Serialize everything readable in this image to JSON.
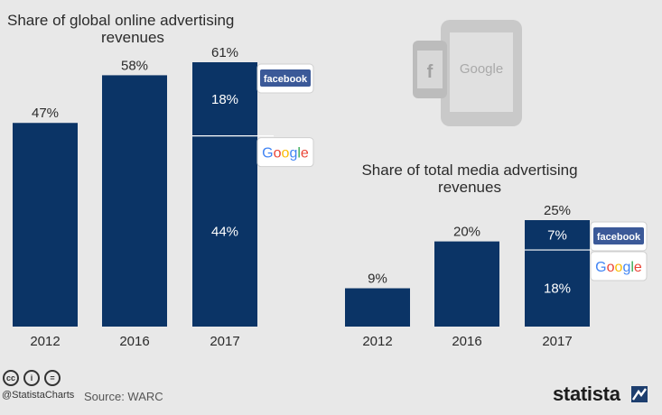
{
  "colors": {
    "bar": "#0b3466",
    "background": "#e8e8e8",
    "label": "#2b2b2b",
    "facebook": "#3b5998"
  },
  "chart_data": [
    {
      "type": "bar",
      "title": "Share of global online advertising revenues",
      "title_lines": [
        "Share of global online advertising",
        "revenues"
      ],
      "categories": [
        "2012",
        "2016",
        "2017"
      ],
      "values": [
        47,
        58,
        61
      ],
      "value_labels": [
        "47%",
        "58%",
        "61%"
      ],
      "stacked_breakdown": {
        "category": "2017",
        "segments": [
          {
            "name": "Google",
            "value": 44,
            "label": "44%"
          },
          {
            "name": "Facebook",
            "value": 18,
            "label": "18%"
          }
        ]
      },
      "ylim": [
        0,
        61
      ]
    },
    {
      "type": "bar",
      "title": "Share of total media advertising revenues",
      "title_lines": [
        "Share of total media advertising",
        "revenues"
      ],
      "categories": [
        "2012",
        "2016",
        "2017"
      ],
      "values": [
        9,
        20,
        25
      ],
      "value_labels": [
        "9%",
        "20%",
        "25%"
      ],
      "stacked_breakdown": {
        "category": "2017",
        "segments": [
          {
            "name": "Google",
            "value": 18,
            "label": "18%"
          },
          {
            "name": "Facebook",
            "value": 7,
            "label": "7%"
          }
        ]
      },
      "ylim": [
        0,
        25
      ]
    }
  ],
  "logos": {
    "facebook": "facebook",
    "google": "Google",
    "illustration_google": "Google",
    "illustration_facebook": "f"
  },
  "footer": {
    "handle": "@StatistaCharts",
    "source": "Source: WARC",
    "brand": "statista",
    "cc_icons": [
      "cc",
      "i",
      "="
    ]
  }
}
